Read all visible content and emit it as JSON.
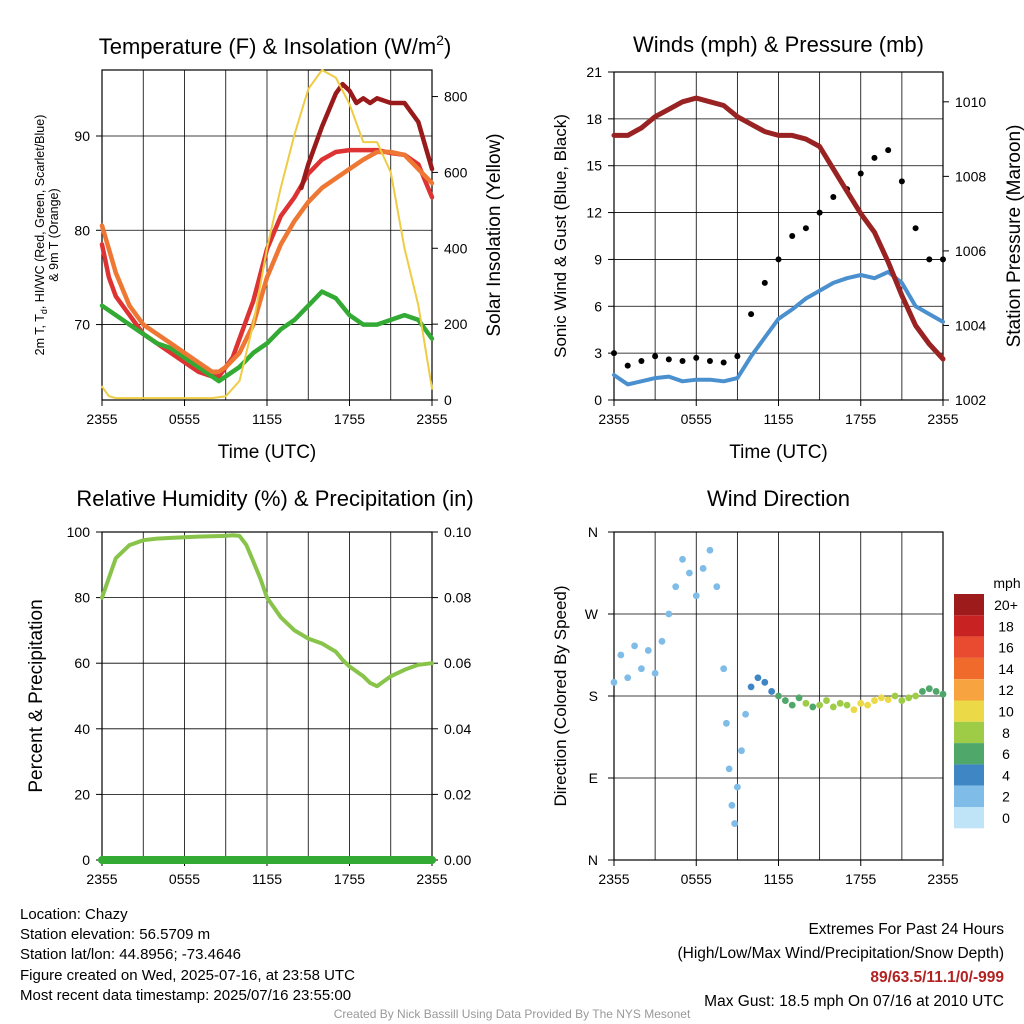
{
  "chart_data": [
    {
      "panel": "temperature",
      "type": "line",
      "title": "Temperature (F) & Insolation (W/m²)",
      "title_main": "Temperature (F) & Insolation (W/m",
      "title_sup": "2",
      "title_end": ")",
      "xlabel": "Time (UTC)",
      "ylabel_left_lines": [
        "2m T, T",
        "d",
        ", HI/WC (Red, Green, Scarlet/Blue)",
        "& 9m T (Orange)"
      ],
      "ylabel_right": "Solar Insolation (Yellow)",
      "x_ticks": [
        "2355",
        "0555",
        "1155",
        "1755",
        "2355"
      ],
      "x_range_hours": [
        0,
        24
      ],
      "y_left_range": [
        62,
        97
      ],
      "y_left_ticks": [
        70,
        80,
        90
      ],
      "y_right_range": [
        0,
        870
      ],
      "y_right_ticks": [
        0,
        200,
        400,
        600,
        800
      ],
      "grid": true,
      "series": [
        {
          "color": "#dd3333",
          "axis": "left",
          "x": [
            0,
            0.5,
            1,
            2,
            3,
            4,
            5,
            6,
            7,
            8,
            8.5,
            9,
            9.5,
            10,
            11,
            12,
            13,
            14,
            15,
            16,
            17,
            18,
            19,
            20,
            21,
            22,
            23,
            24
          ],
          "y": [
            78.5,
            75,
            73,
            71,
            69,
            68,
            67,
            66,
            65,
            64.5,
            64.5,
            65.5,
            66.5,
            68.5,
            72.5,
            78,
            81.5,
            83.5,
            86,
            87.5,
            88.3,
            88.5,
            88.5,
            88.5,
            88.2,
            88,
            87,
            83.5
          ]
        },
        {
          "color": "#33aa33",
          "axis": "left",
          "x": [
            0,
            1,
            2,
            3,
            4,
            5,
            6,
            7,
            8,
            8.5,
            9,
            10,
            11,
            12,
            13,
            14,
            15,
            16,
            17,
            18,
            19,
            20,
            21,
            22,
            23,
            24
          ],
          "y": [
            72,
            71,
            70,
            69,
            68,
            67.5,
            66.5,
            65.5,
            64.5,
            64,
            64.5,
            65.5,
            67,
            68,
            69.5,
            70.5,
            72,
            73.5,
            72.8,
            71,
            70,
            70,
            70.5,
            71,
            70.5,
            68.5
          ]
        },
        {
          "color": "#ee7733",
          "axis": "left",
          "x": [
            0,
            0.5,
            1,
            2,
            3,
            4,
            5,
            6,
            7,
            8,
            8.5,
            9,
            10,
            11,
            12,
            13,
            14,
            15,
            16,
            17,
            18,
            19,
            20,
            21,
            22,
            23,
            24
          ],
          "y": [
            80.5,
            78,
            75.5,
            72,
            70,
            69,
            68,
            67,
            66,
            65,
            65,
            65.5,
            67,
            70,
            75,
            78.5,
            81,
            83,
            84.5,
            85.5,
            86.5,
            87.5,
            88.3,
            88.3,
            88,
            86.5,
            85
          ]
        },
        {
          "color": "#991a1a",
          "axis": "left",
          "x": [
            14.5,
            15,
            16,
            17,
            17.5,
            18,
            18.5,
            19,
            19.5,
            20,
            21,
            22,
            23,
            23.5,
            24
          ],
          "y": [
            84.5,
            87,
            91,
            94.5,
            95.5,
            94.8,
            93.5,
            94,
            93.5,
            94,
            93.5,
            93.5,
            91.5,
            89,
            86.5
          ]
        },
        {
          "color": "#eecc44",
          "axis": "right",
          "x": [
            0,
            0.5,
            1,
            2,
            3,
            4,
            5,
            6,
            7,
            8,
            9,
            10,
            11,
            12,
            13,
            14,
            15,
            16,
            17,
            18,
            19,
            20,
            21,
            22,
            23,
            24
          ],
          "y": [
            35,
            10,
            5,
            5,
            5,
            5,
            5,
            5,
            5,
            5,
            10,
            50,
            200,
            400,
            560,
            700,
            820,
            870,
            850,
            780,
            680,
            680,
            600,
            400,
            250,
            30
          ]
        }
      ]
    },
    {
      "panel": "winds",
      "type": "line",
      "title": "Winds (mph) & Pressure (mb)",
      "xlabel": "Time (UTC)",
      "ylabel_left": "Sonic Wind & Gust (Blue, Black)",
      "ylabel_right": "Station Pressure (Maroon)",
      "x_ticks": [
        "2355",
        "0555",
        "1155",
        "1755",
        "2355"
      ],
      "x_range_hours": [
        0,
        24
      ],
      "y_left_range": [
        0,
        21
      ],
      "y_left_ticks": [
        0,
        3,
        6,
        9,
        12,
        15,
        18,
        21
      ],
      "y_right_range": [
        1002,
        1010.8
      ],
      "y_right_ticks": [
        1002,
        1004,
        1006,
        1008,
        1010
      ],
      "grid": true,
      "series": [
        {
          "name": "Sonic Wind",
          "color": "#4a8fce",
          "axis": "left",
          "x": [
            0,
            1,
            2,
            3,
            4,
            5,
            6,
            7,
            8,
            9,
            10,
            11,
            12,
            13,
            14,
            15,
            16,
            17,
            18,
            19,
            20,
            21,
            22,
            23,
            24
          ],
          "y": [
            1.6,
            1,
            1.2,
            1.4,
            1.5,
            1.2,
            1.3,
            1.3,
            1.2,
            1.4,
            2.8,
            4,
            5.2,
            5.8,
            6.5,
            7,
            7.5,
            7.8,
            8,
            7.8,
            8.2,
            7.5,
            6,
            5.5,
            5
          ]
        },
        {
          "name": "Gust",
          "color": "#000000",
          "axis": "left",
          "kind": "points",
          "x": [
            0,
            1,
            2,
            3,
            4,
            5,
            6,
            7,
            8,
            9,
            10,
            11,
            12,
            13,
            14,
            15,
            16,
            17,
            18,
            19,
            20,
            21,
            22,
            23,
            24
          ],
          "y": [
            3,
            2.2,
            2.5,
            2.8,
            2.6,
            2.5,
            2.7,
            2.5,
            2.4,
            2.8,
            5.5,
            7.5,
            9,
            10.5,
            11,
            12,
            13,
            13.5,
            14.5,
            15.5,
            16,
            14,
            11,
            9,
            9
          ]
        },
        {
          "name": "Pressure",
          "color": "#992222",
          "axis": "right",
          "x": [
            0,
            1,
            2,
            3,
            4,
            5,
            6,
            7,
            8,
            9,
            10,
            11,
            12,
            13,
            14,
            15,
            16,
            17,
            18,
            19,
            20,
            21,
            22,
            23,
            24
          ],
          "y": [
            1009.1,
            1009.1,
            1009.3,
            1009.6,
            1009.8,
            1010,
            1010.1,
            1010,
            1009.9,
            1009.6,
            1009.4,
            1009.2,
            1009.1,
            1009.1,
            1009,
            1008.8,
            1008.2,
            1007.6,
            1007,
            1006.5,
            1005.7,
            1004.8,
            1004,
            1003.5,
            1003.1
          ]
        }
      ]
    },
    {
      "panel": "humidity",
      "type": "line",
      "title": "Relative Humidity (%) & Precipitation (in)",
      "ylabel_left": "Percent & Precipitation",
      "x_ticks": [
        "2355",
        "0555",
        "1155",
        "1755",
        "2355"
      ],
      "x_range_hours": [
        0,
        24
      ],
      "y_left_range": [
        0,
        100
      ],
      "y_left_ticks": [
        0,
        20,
        40,
        60,
        80,
        100
      ],
      "y_right_range": [
        0,
        0.1
      ],
      "y_right_ticks": [
        "0.00",
        "0.02",
        "0.04",
        "0.06",
        "0.08",
        "0.10"
      ],
      "grid": true,
      "series": [
        {
          "name": "Relative Humidity",
          "color": "#88c34a",
          "axis": "left",
          "x": [
            0,
            1,
            2,
            3,
            4,
            5,
            6,
            7,
            8,
            9,
            9.5,
            10,
            10.5,
            11,
            11.5,
            12,
            13,
            14,
            15,
            16,
            17,
            17.5,
            18,
            18.5,
            19,
            19.5,
            20,
            21,
            22,
            23,
            24
          ],
          "y": [
            80,
            92,
            96,
            97.5,
            98,
            98.2,
            98.4,
            98.6,
            98.7,
            98.8,
            99,
            98.8,
            96,
            91,
            86,
            80,
            74,
            70,
            67.5,
            66,
            63.5,
            61,
            59,
            57.5,
            56,
            54,
            53,
            56,
            58,
            59.5,
            60
          ]
        },
        {
          "name": "Precipitation",
          "color": "#33aa33",
          "axis": "left",
          "x": [
            0,
            24
          ],
          "y": [
            0,
            0
          ]
        }
      ]
    },
    {
      "panel": "wind_direction",
      "type": "scatter",
      "title": "Wind Direction",
      "ylabel_left": "Direction (Colored By Speed)",
      "x_ticks": [
        "2355",
        "0555",
        "1155",
        "1755",
        "2355"
      ],
      "x_range_hours": [
        0,
        24
      ],
      "y_tick_labels": [
        "N",
        "E",
        "S",
        "W",
        "N"
      ],
      "y_range_deg": [
        0,
        360
      ],
      "grid": true,
      "points_deg": [
        [
          0,
          195
        ],
        [
          0.5,
          225
        ],
        [
          1,
          200
        ],
        [
          1.5,
          235
        ],
        [
          2,
          210
        ],
        [
          2.5,
          230
        ],
        [
          3,
          205
        ],
        [
          3.5,
          240
        ],
        [
          4,
          270
        ],
        [
          4.5,
          300
        ],
        [
          5,
          330
        ],
        [
          5.5,
          315
        ],
        [
          6,
          290
        ],
        [
          6.5,
          320
        ],
        [
          7,
          340
        ],
        [
          7.5,
          300
        ],
        [
          8,
          210
        ],
        [
          8.2,
          150
        ],
        [
          8.4,
          100
        ],
        [
          8.6,
          60
        ],
        [
          8.8,
          40
        ],
        [
          9,
          80
        ],
        [
          9.3,
          120
        ],
        [
          9.6,
          160
        ],
        [
          10,
          190
        ],
        [
          10.5,
          200
        ],
        [
          11,
          195
        ],
        [
          11.5,
          185
        ],
        [
          12,
          180
        ],
        [
          12.5,
          175
        ],
        [
          13,
          170
        ],
        [
          13.5,
          178
        ],
        [
          14,
          172
        ],
        [
          14.5,
          168
        ],
        [
          15,
          170
        ],
        [
          15.5,
          175
        ],
        [
          16,
          168
        ],
        [
          16.5,
          172
        ],
        [
          17,
          170
        ],
        [
          17.5,
          165
        ],
        [
          18,
          172
        ],
        [
          18.5,
          170
        ],
        [
          19,
          175
        ],
        [
          19.5,
          178
        ],
        [
          20,
          176
        ],
        [
          20.5,
          180
        ],
        [
          21,
          175
        ],
        [
          21.5,
          178
        ],
        [
          22,
          180
        ],
        [
          22.5,
          185
        ],
        [
          23,
          188
        ],
        [
          23.5,
          185
        ],
        [
          24,
          182
        ]
      ],
      "speeds": [
        1,
        1,
        2,
        1,
        2,
        1,
        2,
        1,
        1,
        2,
        1,
        1,
        1,
        2,
        1,
        1,
        2,
        1,
        2,
        1,
        2,
        1,
        2,
        2,
        3,
        3,
        4,
        4,
        5,
        5,
        6,
        6,
        7,
        6,
        7,
        7,
        8,
        8,
        8,
        9,
        9,
        9,
        10,
        10,
        9,
        8,
        8,
        7,
        7,
        6,
        6,
        5,
        5
      ],
      "legend_title": "mph",
      "legend_labels": [
        "20+",
        "18",
        "16",
        "14",
        "12",
        "10",
        "8",
        "6",
        "4",
        "2",
        "0"
      ],
      "legend_colors": [
        "#9e1b1b",
        "#c82222",
        "#e84b2f",
        "#f06a2b",
        "#f7a440",
        "#ebd947",
        "#9fcc47",
        "#4fa86a",
        "#3f86c4",
        "#7fbde8",
        "#bfe3f7"
      ]
    }
  ],
  "station": {
    "location": "Location: Chazy",
    "elevation": "Station elevation: 56.5709 m",
    "latlon": "Station lat/lon: 44.8956; -73.4646",
    "created": "Figure created on Wed, 2025-07-16, at 23:58 UTC",
    "recent": "Most recent data timestamp: 2025/07/16 23:55:00"
  },
  "extremes": {
    "title": "Extremes For Past 24 Hours",
    "subtitle": "(High/Low/Max Wind/Precipitation/Snow Depth)",
    "values": "89/63.5/11.1/0/-999",
    "max_gust": "Max Gust: 18.5 mph On 07/16 at 2010 UTC"
  },
  "credit": "Created By Nick Bassill Using Data Provided By The NYS Mesonet"
}
